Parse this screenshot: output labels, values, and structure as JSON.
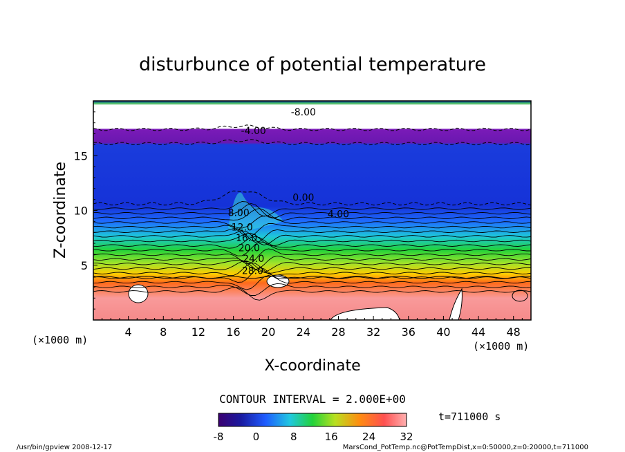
{
  "chart_data": {
    "type": "heatmap",
    "title": "disturbunce of potential temperature",
    "xlabel": "X-coordinate",
    "ylabel": "Z-coordinate",
    "x_unit_left": "(×1000 m)",
    "x_unit_right": "(×1000 m)",
    "xlim": [
      0,
      50
    ],
    "ylim": [
      0,
      20
    ],
    "x_ticks": [
      "4",
      "8",
      "12",
      "16",
      "20",
      "24",
      "28",
      "32",
      "36",
      "40",
      "44",
      "48"
    ],
    "y_ticks": [
      "5",
      "10",
      "15"
    ],
    "contour_interval_label": "CONTOUR INTERVAL = 2.000E+00",
    "contour_labels": [
      "-8.00",
      "-4.00",
      "0.00",
      "4.00",
      "8.00",
      "12.0",
      "16.0",
      "20.0",
      "24.0",
      "28.0"
    ],
    "time_label": "t=711000 s",
    "colorbar": {
      "range": [
        -8,
        32
      ],
      "ticks": [
        "-8",
        "0",
        "8",
        "16",
        "24",
        "32"
      ]
    },
    "footer_left": "/usr/bin/gpview   2008-12-17",
    "footer_right": "MarsCond_PotTemp.nc@PotTempDist,x=0:50000,z=0:20000,t=711000",
    "grid": false,
    "legend": "bottom-center colorbar"
  },
  "colors": {
    "low": "#4b0082",
    "mid": "#2de03a",
    "high": "#ff9a9a"
  }
}
